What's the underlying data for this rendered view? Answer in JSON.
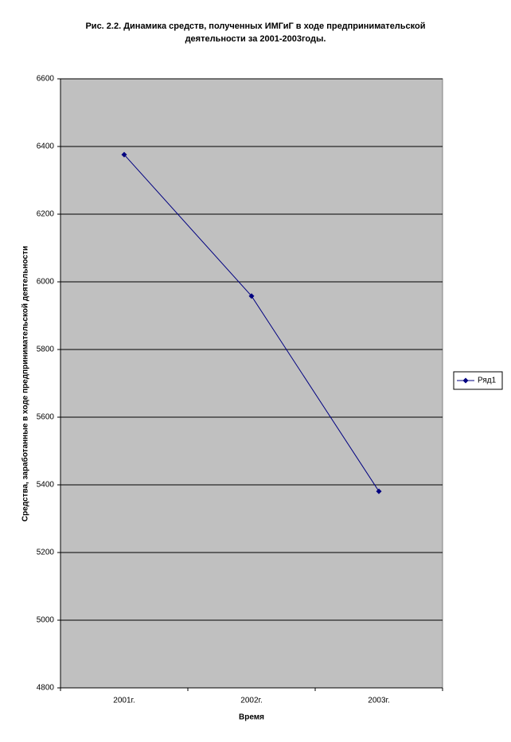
{
  "chart_data": {
    "type": "line",
    "title": "Рис. 2.2. Динамика средств, полученных ИМГиГ в ходе предпринимательской деятельности за 2001-2003годы.",
    "x_label": "Время",
    "y_label": "Средства, заработанные в ходе предпринимательской деятельности",
    "categories": [
      "2001г.",
      "2002г.",
      "2003г."
    ],
    "series": [
      {
        "name": "Ряд1",
        "color": "#000080",
        "values": [
          6376,
          5958,
          5381
        ]
      }
    ],
    "ylim": [
      4800,
      6600
    ],
    "yticks": [
      4800,
      5000,
      5200,
      5400,
      5600,
      5800,
      6000,
      6200,
      6400,
      6600
    ],
    "grid": true,
    "legend": "right",
    "plot_background": "#c0c0c0"
  }
}
